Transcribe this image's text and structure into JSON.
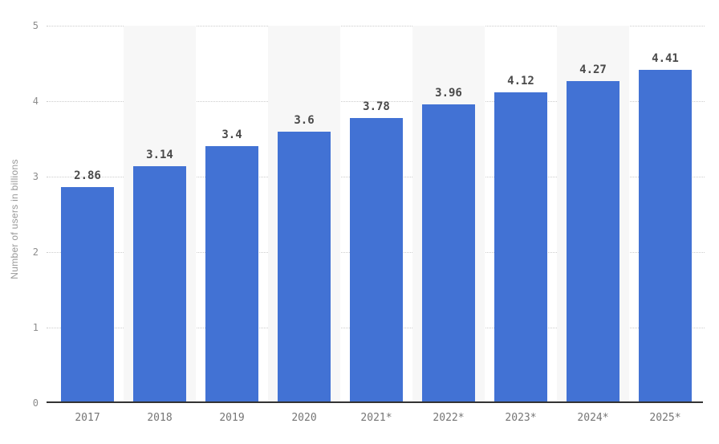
{
  "chart_data": {
    "type": "bar",
    "title": "",
    "xlabel": "",
    "ylabel": "Number of users in billions",
    "categories": [
      "2017",
      "2018",
      "2019",
      "2020",
      "2021*",
      "2022*",
      "2023*",
      "2024*",
      "2025*"
    ],
    "values": [
      2.86,
      3.14,
      3.4,
      3.6,
      3.78,
      3.96,
      4.12,
      4.27,
      4.41
    ],
    "value_labels": [
      "2.86",
      "3.14",
      "3.4",
      "3.6",
      "3.78",
      "3.96",
      "4.12",
      "4.27",
      "4.41"
    ],
    "ylim": [
      0,
      5
    ],
    "yticks": [
      0,
      1,
      2,
      3,
      4,
      5
    ],
    "grid": "horizontal-dotted",
    "legend_position": "none",
    "striped_columns": "alternating, starting with second column",
    "colors": {
      "bar": "#4272d4",
      "column_stripe": "#f7f7f7",
      "gridline": "#cccccc",
      "axis_line": "#333333",
      "value_label": "#4a4a4a",
      "x_tick_label": "#757575",
      "y_tick_label": "#8c8c8c",
      "axis_title": "#999999",
      "background": "#ffffff"
    }
  }
}
